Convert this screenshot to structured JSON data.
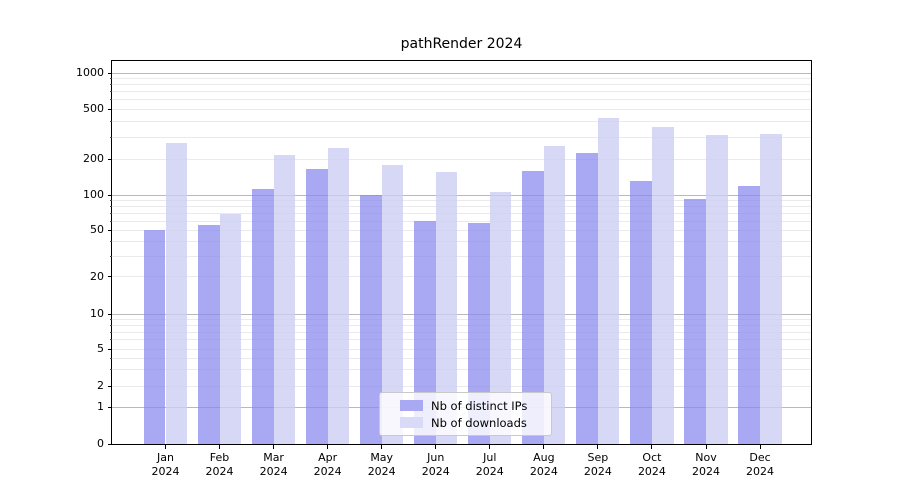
{
  "title": "pathRender 2024",
  "chart_data": {
    "type": "bar",
    "title": "pathRender 2024",
    "categories": [
      "Jan 2024",
      "Feb 2024",
      "Mar 2024",
      "Apr 2024",
      "May 2024",
      "Jun 2024",
      "Jul 2024",
      "Aug 2024",
      "Sep 2024",
      "Oct 2024",
      "Nov 2024",
      "Dec 2024"
    ],
    "series": [
      {
        "name": "Nb of distinct IPs",
        "color": "rgba(136,136,238,0.72)",
        "swatch_color": "#a9a9f3",
        "values": [
          50,
          56,
          113,
          165,
          100,
          60,
          58,
          159,
          222,
          131,
          92,
          120
        ]
      },
      {
        "name": "Nb of downloads",
        "color": "rgba(204,204,244,0.78)",
        "swatch_color": "#d9d9f8",
        "values": [
          270,
          69,
          215,
          246,
          179,
          157,
          107,
          255,
          428,
          358,
          312,
          318
        ]
      }
    ],
    "xlabel": "",
    "ylabel": "",
    "yscale": "symlog",
    "ylim": [
      0,
      1200
    ],
    "yticks": [
      0,
      1,
      2,
      5,
      10,
      20,
      50,
      100,
      200,
      500,
      1000
    ],
    "y_tick_labels": [
      "0",
      "1",
      "2",
      "5",
      "10",
      "20",
      "50",
      "100",
      "200",
      "500",
      "1000"
    ],
    "grid": true,
    "grid_minor_color": "#eaeaea",
    "grid_major_color": "#b9b9b9",
    "legend_position": "lower center",
    "legend": [
      "Nb of distinct IPs",
      "Nb of downloads"
    ]
  }
}
